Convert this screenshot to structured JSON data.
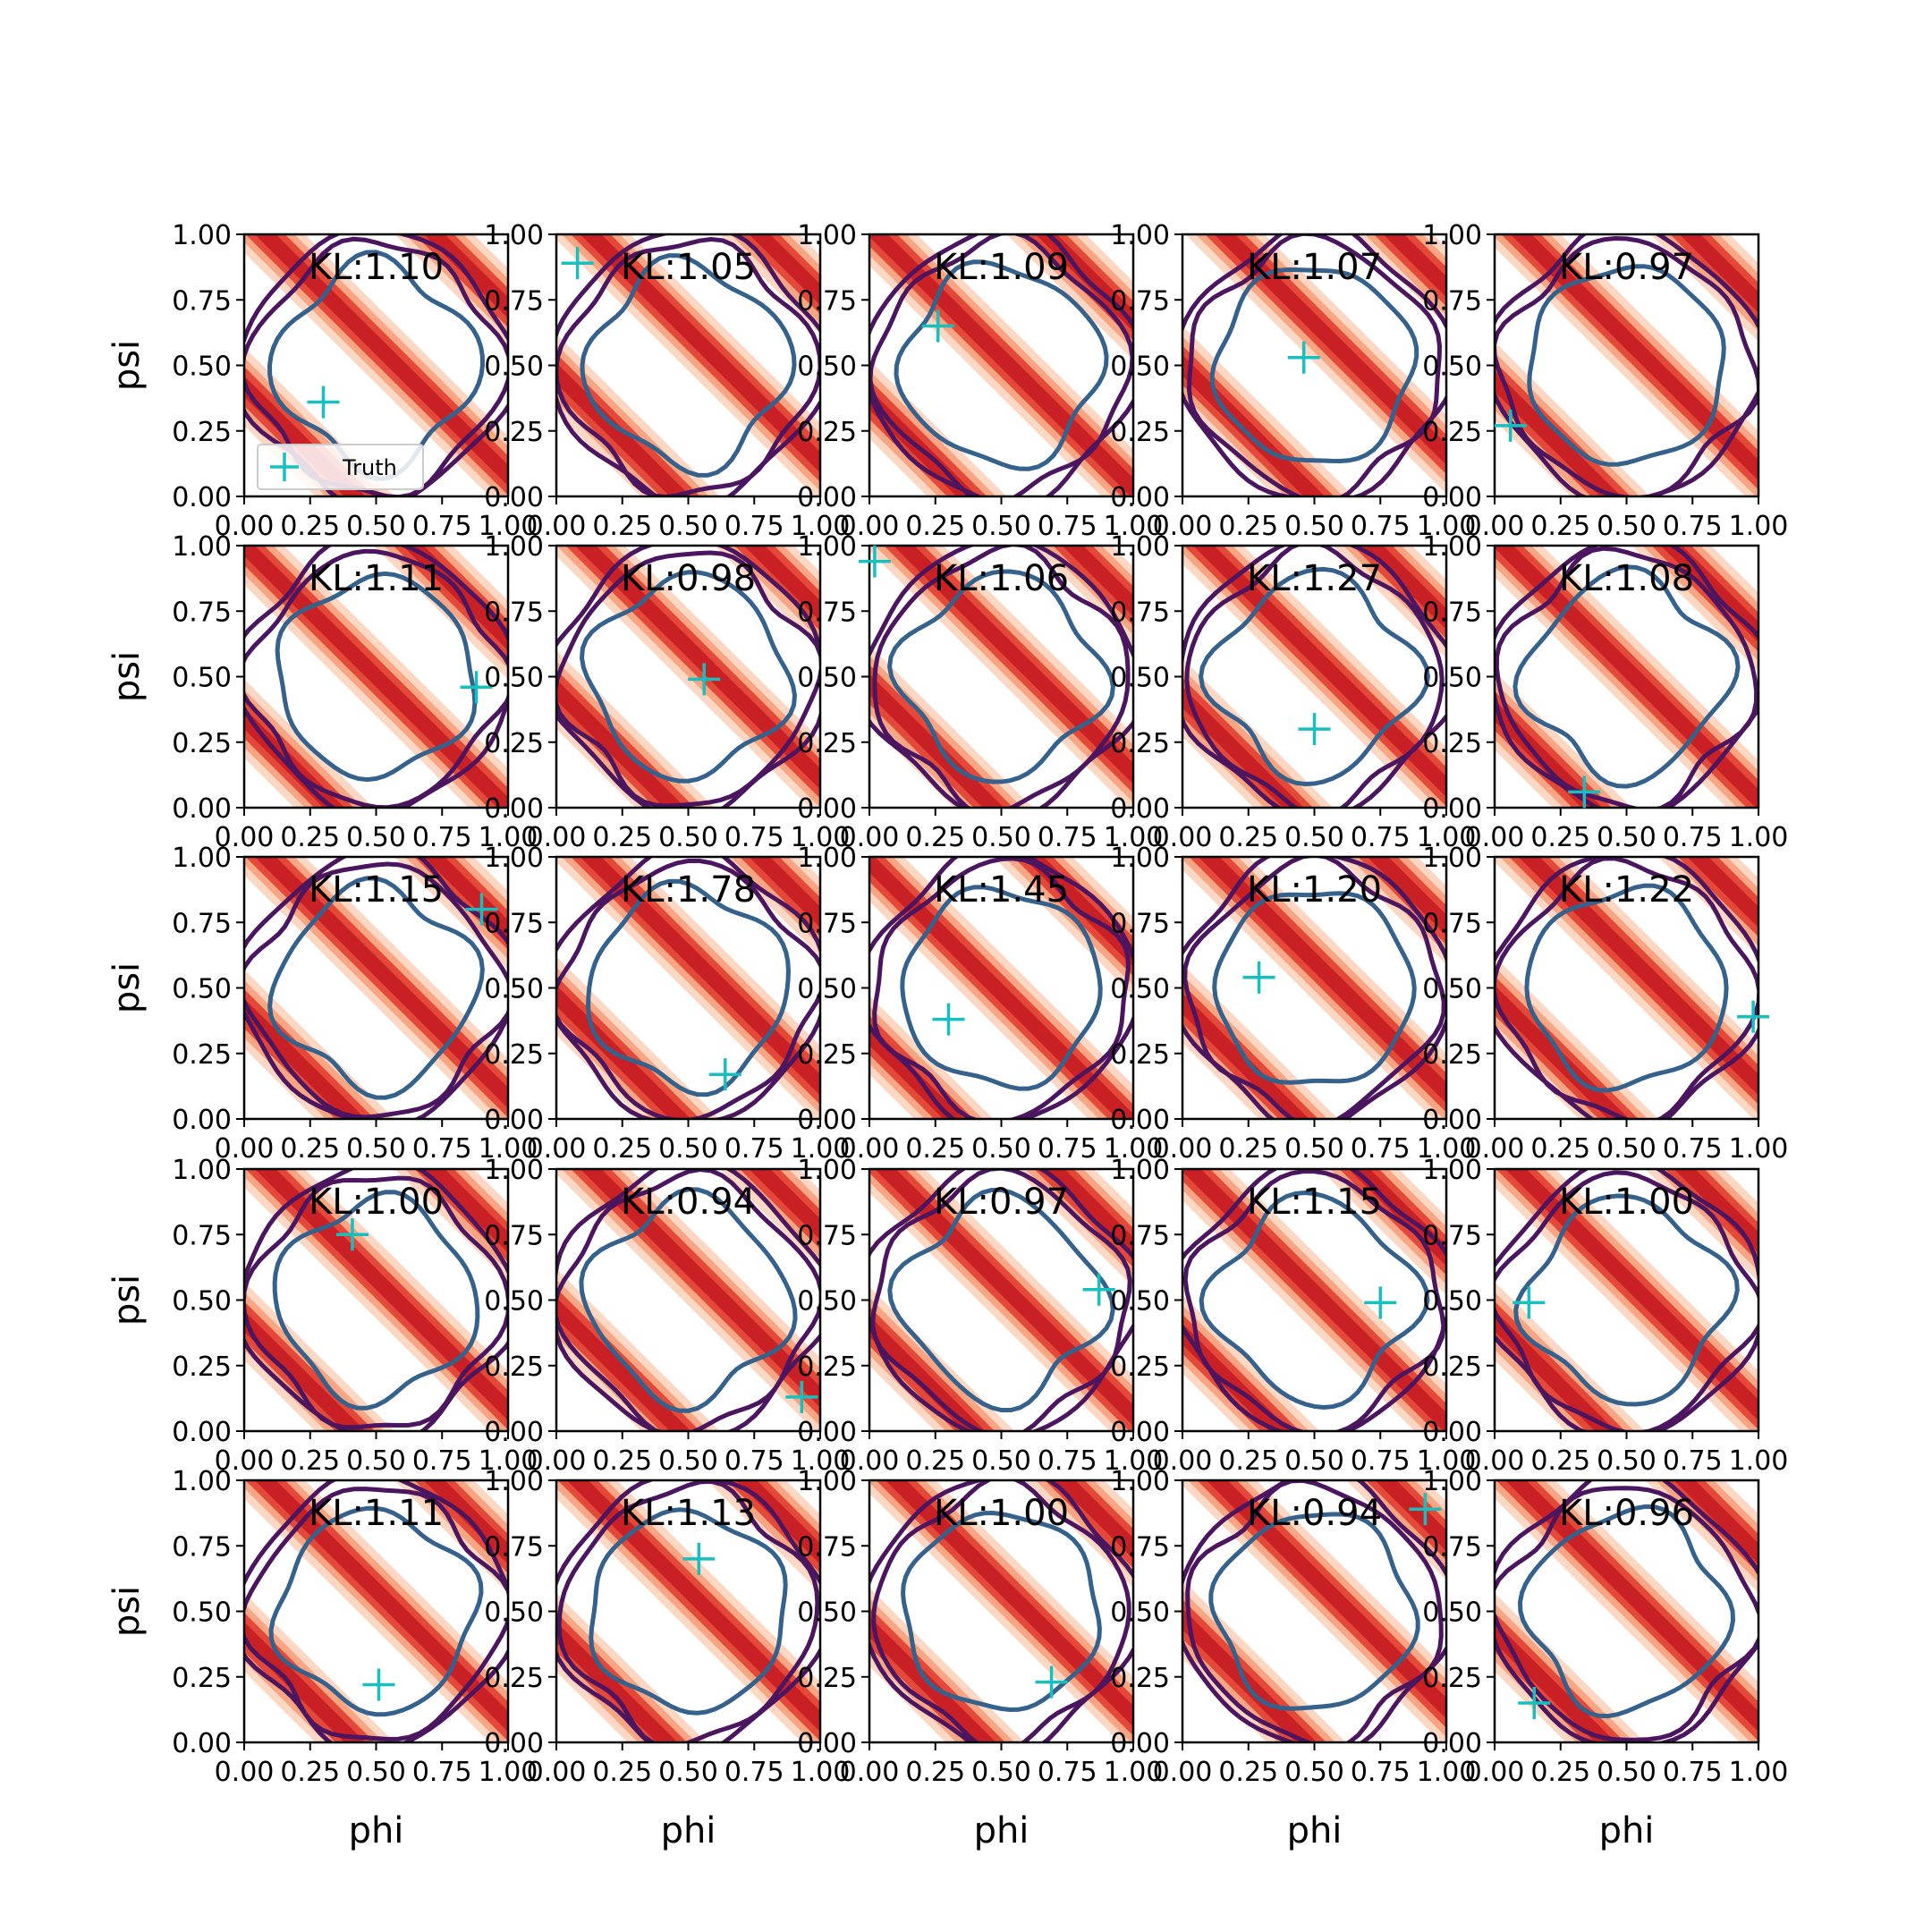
{
  "chart_data": {
    "type": "contour-grid",
    "rows": 5,
    "cols": 5,
    "xlabel": "phi",
    "ylabel": "psi",
    "xlim": [
      0,
      1
    ],
    "ylim": [
      0,
      1
    ],
    "ticks": [
      0.0,
      0.25,
      0.5,
      0.75,
      1.0
    ],
    "tick_labels": [
      "0.00",
      "0.25",
      "0.50",
      "0.75",
      "1.00"
    ],
    "legend": {
      "label": "Truth",
      "placement": "lower-left"
    },
    "colors": {
      "band_dark": "#c71f24",
      "band_mid": "#e34234",
      "band_light": "#f7a27f",
      "band_pale": "#fcd5c0",
      "contour_outer": "#4b1560",
      "contour_inner": "#34628c",
      "truth_marker": "#17bfbf"
    },
    "panels": [
      {
        "kl": "KL:1.10",
        "truth": [
          0.3,
          0.36
        ],
        "band_offset": 0.0
      },
      {
        "kl": "KL:1.05",
        "truth": [
          0.08,
          0.89
        ],
        "band_offset": 0.05
      },
      {
        "kl": "KL:1.09",
        "truth": [
          0.26,
          0.65
        ],
        "band_offset": -0.05
      },
      {
        "kl": "KL:1.07",
        "truth": [
          0.46,
          0.53
        ],
        "band_offset": 0.08
      },
      {
        "kl": "KL:0.97",
        "truth": [
          0.06,
          0.27
        ],
        "band_offset": 0.02
      },
      {
        "kl": "KL:1.11",
        "truth": [
          0.88,
          0.46
        ],
        "band_offset": -0.08
      },
      {
        "kl": "KL:0.98",
        "truth": [
          0.56,
          0.49
        ],
        "band_offset": 0.03
      },
      {
        "kl": "KL:1.06",
        "truth": [
          0.02,
          0.94
        ],
        "band_offset": 0.05
      },
      {
        "kl": "KL:1.27",
        "truth": [
          0.5,
          0.3
        ],
        "band_offset": 0.0
      },
      {
        "kl": "KL:1.08",
        "truth": [
          0.34,
          0.06
        ],
        "band_offset": -0.05
      },
      {
        "kl": "KL:1.15",
        "truth": [
          0.9,
          0.8
        ],
        "band_offset": 0.0
      },
      {
        "kl": "KL:1.78",
        "truth": [
          0.64,
          0.17
        ],
        "band_offset": 0.05
      },
      {
        "kl": "KL:1.45",
        "truth": [
          0.3,
          0.38
        ],
        "band_offset": -0.1
      },
      {
        "kl": "KL:1.20",
        "truth": [
          0.29,
          0.54
        ],
        "band_offset": 0.02
      },
      {
        "kl": "KL:1.22",
        "truth": [
          0.98,
          0.39
        ],
        "band_offset": 0.05
      },
      {
        "kl": "KL:1.00",
        "truth": [
          0.41,
          0.75
        ],
        "band_offset": 0.0
      },
      {
        "kl": "KL:0.94",
        "truth": [
          0.93,
          0.13
        ],
        "band_offset": 0.05
      },
      {
        "kl": "KL:0.97",
        "truth": [
          0.87,
          0.54
        ],
        "band_offset": -0.02
      },
      {
        "kl": "KL:1.15",
        "truth": [
          0.75,
          0.49
        ],
        "band_offset": -0.05
      },
      {
        "kl": "KL:1.00",
        "truth": [
          0.13,
          0.49
        ],
        "band_offset": 0.0
      },
      {
        "kl": "KL:1.11",
        "truth": [
          0.51,
          0.22
        ],
        "band_offset": 0.0
      },
      {
        "kl": "KL:1.13",
        "truth": [
          0.54,
          0.7
        ],
        "band_offset": 0.0
      },
      {
        "kl": "KL:1.00",
        "truth": [
          0.69,
          0.23
        ],
        "band_offset": 0.02
      },
      {
        "kl": "KL:0.94",
        "truth": [
          0.92,
          0.89
        ],
        "band_offset": 0.05
      },
      {
        "kl": "KL:0.96",
        "truth": [
          0.15,
          0.15
        ],
        "band_offset": 0.0
      }
    ]
  }
}
